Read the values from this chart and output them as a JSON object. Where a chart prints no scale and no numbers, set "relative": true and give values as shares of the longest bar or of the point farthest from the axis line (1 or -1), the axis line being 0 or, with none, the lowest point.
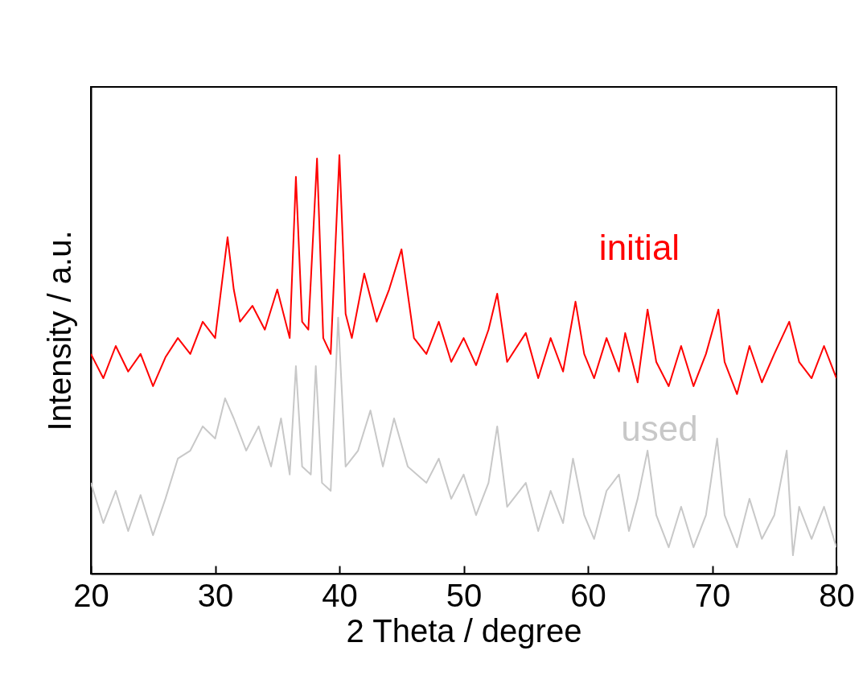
{
  "chart_data": {
    "type": "line",
    "relative": true,
    "xlabel": "2 Theta / degree",
    "ylabel": "Intensity / a.u.",
    "xlim": [
      20,
      80
    ],
    "xticks": [
      20,
      30,
      40,
      50,
      60,
      70,
      80
    ],
    "grid": false,
    "tick_labels": "x",
    "series": [
      {
        "name": "initial",
        "color": "#ff0000",
        "x": [
          20,
          21,
          22,
          23,
          24,
          25,
          26,
          27,
          28,
          29,
          30,
          31,
          31.5,
          32,
          33,
          34,
          35,
          36,
          36.5,
          37,
          37.5,
          38.2,
          38.7,
          39.3,
          40,
          40.5,
          41,
          42,
          43,
          44,
          45,
          46,
          47,
          48,
          49,
          50,
          51,
          52,
          52.7,
          53.5,
          55,
          56,
          57,
          58,
          59,
          59.7,
          60.5,
          61.5,
          62.5,
          63,
          64,
          64.8,
          65.5,
          66.5,
          67.5,
          68.5,
          69.5,
          70.5,
          71,
          72,
          73,
          74,
          75,
          76.2,
          77,
          78,
          79,
          80
        ],
        "values": [
          0.525,
          0.467,
          0.544,
          0.483,
          0.525,
          0.448,
          0.517,
          0.563,
          0.525,
          0.602,
          0.563,
          0.804,
          0.679,
          0.602,
          0.64,
          0.583,
          0.679,
          0.563,
          0.948,
          0.602,
          0.583,
          0.992,
          0.563,
          0.525,
          1,
          0.621,
          0.563,
          0.717,
          0.602,
          0.679,
          0.775,
          0.563,
          0.525,
          0.602,
          0.506,
          0.563,
          0.498,
          0.583,
          0.669,
          0.506,
          0.575,
          0.467,
          0.563,
          0.483,
          0.65,
          0.525,
          0.467,
          0.563,
          0.483,
          0.575,
          0.457,
          0.631,
          0.506,
          0.448,
          0.544,
          0.448,
          0.525,
          0.631,
          0.506,
          0.429,
          0.544,
          0.457,
          0.525,
          0.602,
          0.506,
          0.467,
          0.544,
          0.467
        ]
      },
      {
        "name": "used",
        "color": "#c8c8c8",
        "x": [
          20,
          21,
          22,
          23,
          24,
          25,
          26,
          27,
          28,
          29,
          30,
          30.8,
          31.5,
          32.5,
          33.5,
          34.5,
          35.3,
          36,
          36.5,
          37,
          37.7,
          38.1,
          38.6,
          39.3,
          39.9,
          40.5,
          41.5,
          42.5,
          43.5,
          44.4,
          45.5,
          47,
          48,
          49,
          50,
          51,
          52,
          52.7,
          53.5,
          55,
          56,
          57,
          58,
          58.8,
          59.7,
          60.5,
          61.5,
          62.5,
          63.3,
          64,
          64.8,
          65.5,
          66.5,
          67.5,
          68.5,
          69.5,
          70.4,
          71,
          72,
          73,
          74,
          75,
          76,
          76.5,
          77,
          78,
          79,
          80
        ],
        "values": [
          0.217,
          0.121,
          0.198,
          0.102,
          0.188,
          0.092,
          0.179,
          0.275,
          0.294,
          0.352,
          0.323,
          0.419,
          0.371,
          0.294,
          0.352,
          0.256,
          0.371,
          0.237,
          0.496,
          0.256,
          0.237,
          0.496,
          0.217,
          0.198,
          0.612,
          0.256,
          0.294,
          0.39,
          0.256,
          0.371,
          0.256,
          0.217,
          0.275,
          0.179,
          0.237,
          0.14,
          0.217,
          0.352,
          0.16,
          0.217,
          0.102,
          0.198,
          0.121,
          0.275,
          0.14,
          0.083,
          0.198,
          0.237,
          0.102,
          0.179,
          0.294,
          0.14,
          0.063,
          0.16,
          0.063,
          0.14,
          0.323,
          0.14,
          0.063,
          0.179,
          0.083,
          0.14,
          0.294,
          0.044,
          0.16,
          0.083,
          0.16,
          0.063
        ]
      }
    ]
  }
}
